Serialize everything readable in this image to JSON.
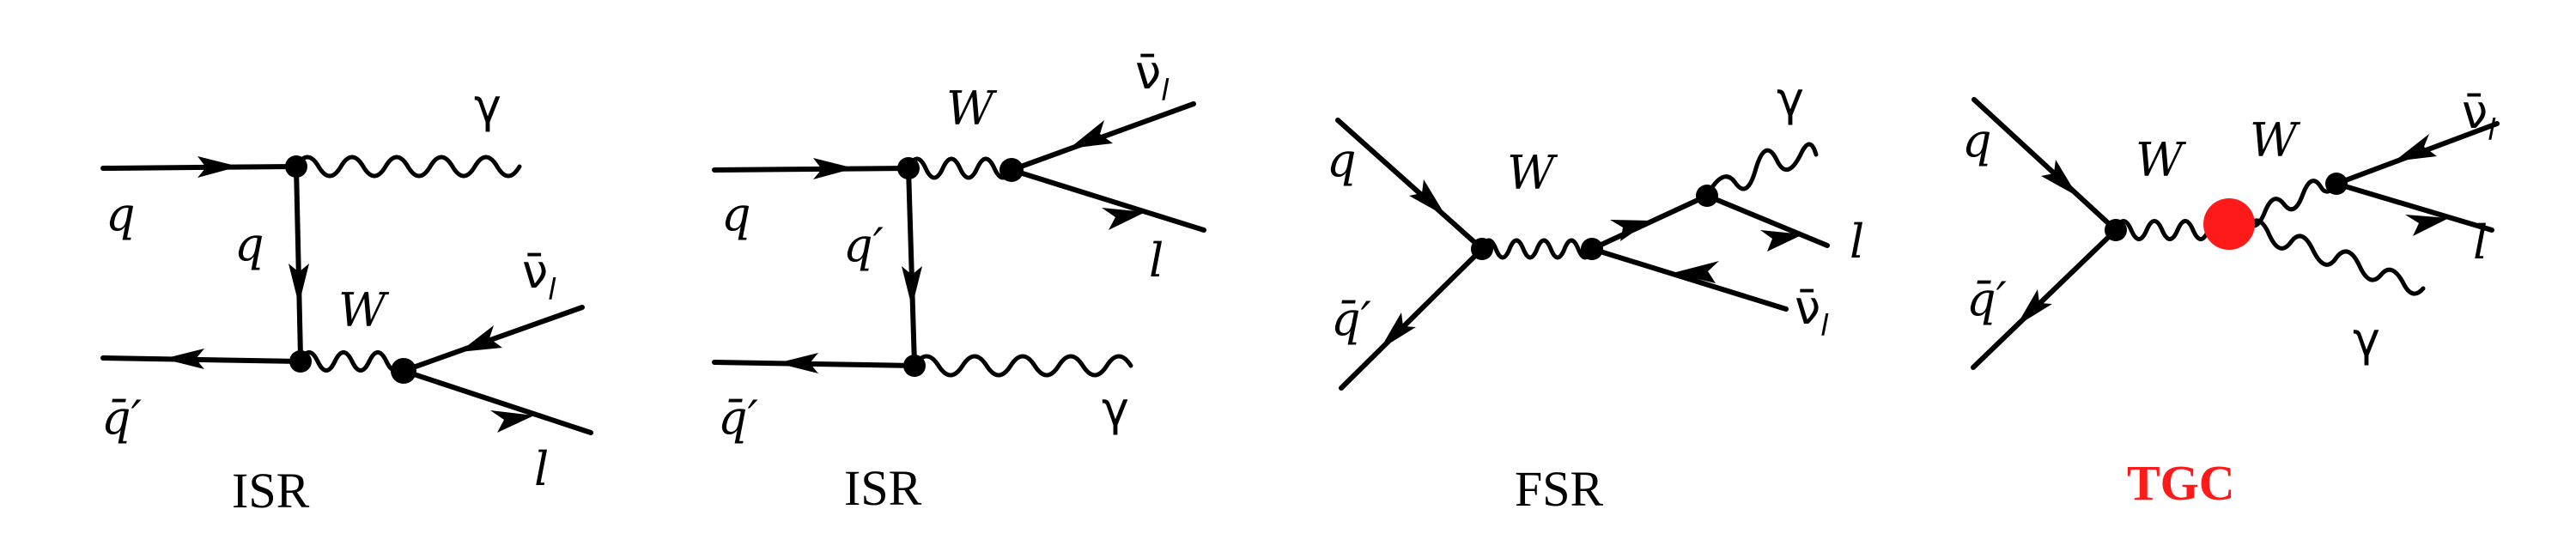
{
  "diagrams": [
    {
      "labels": {
        "q_in": "q",
        "propagator": "q",
        "qbar_out": "q̄′",
        "photon": "γ",
        "boson": "W",
        "nu": "ν̄",
        "nu_sub": "l",
        "lepton": "l"
      },
      "caption": "ISR"
    },
    {
      "labels": {
        "q_in": "q",
        "propagator": "q′",
        "qbar_out": "q̄′",
        "photon": "γ",
        "boson": "W",
        "nu": "ν̄",
        "nu_sub": "l",
        "lepton": "l"
      },
      "caption": "ISR"
    },
    {
      "labels": {
        "q_in": "q",
        "qbar_out": "q̄′",
        "photon": "γ",
        "boson": "W",
        "nu": "ν̄",
        "nu_sub": "l",
        "lepton": "l"
      },
      "caption": "FSR"
    },
    {
      "labels": {
        "q_in": "q",
        "qbar_out": "q̄′",
        "photon": "γ",
        "boson_left": "W",
        "boson_right": "W",
        "nu": "ν̄",
        "nu_sub": "l",
        "lepton": "l"
      },
      "caption": "TGC",
      "caption_color": "#ff1a1a"
    }
  ]
}
